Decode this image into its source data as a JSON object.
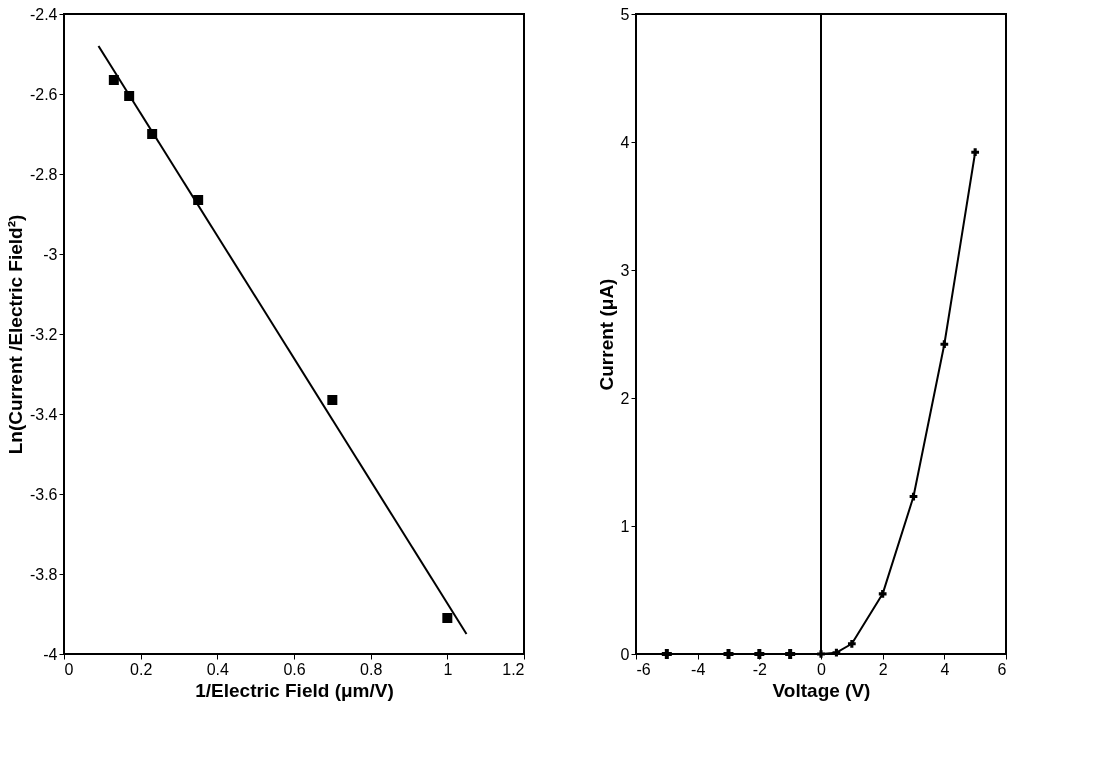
{
  "chart_data": [
    {
      "type": "scatter",
      "xlabel": "1/Electric Field (μm/V)",
      "ylabel": "Ln(Current /Electric Field²)",
      "xlim": [
        0,
        1.2
      ],
      "ylim": [
        -4,
        -2.4
      ],
      "xticks": [
        0,
        0.2,
        0.4,
        0.6,
        0.8,
        1,
        1.2
      ],
      "yticks": [
        -4,
        -3.8,
        -3.6,
        -3.4,
        -3.2,
        -3,
        -2.8,
        -2.6,
        -2.4
      ],
      "grid": false,
      "series": [
        {
          "marker": "square",
          "color": "#000000",
          "x": [
            0.13,
            0.17,
            0.23,
            0.35,
            0.7,
            1.0
          ],
          "values": [
            -2.565,
            -2.605,
            -2.7,
            -2.865,
            -3.365,
            -3.91
          ]
        },
        {
          "type": "line",
          "marker": "none",
          "line_style": "solid",
          "color": "#000000",
          "x": [
            0.09,
            1.05
          ],
          "values": [
            -2.48,
            -3.95
          ]
        }
      ]
    },
    {
      "type": "line",
      "xlabel": "Voltage (V)",
      "ylabel": "Current (μA)",
      "xlim": [
        -6,
        6
      ],
      "ylim": [
        0,
        5
      ],
      "xticks": [
        -6,
        -4,
        -2,
        0,
        2,
        4,
        6
      ],
      "yticks": [
        0,
        1,
        2,
        3,
        4,
        5
      ],
      "grid": false,
      "ref_lines": [
        {
          "axis": "x",
          "value": 0,
          "color": "#000000"
        }
      ],
      "series": [
        {
          "type": "scatter",
          "marker": "cross",
          "color": "#000000",
          "x": [
            -5,
            -3,
            -2,
            -1
          ],
          "values": [
            0,
            0,
            0,
            0
          ]
        },
        {
          "marker": "cross",
          "line_style": "solid",
          "color": "#000000",
          "x": [
            0,
            0.5,
            1,
            2,
            3,
            4,
            5
          ],
          "values": [
            0,
            0.01,
            0.08,
            0.47,
            1.23,
            2.42,
            3.92
          ]
        }
      ]
    }
  ]
}
